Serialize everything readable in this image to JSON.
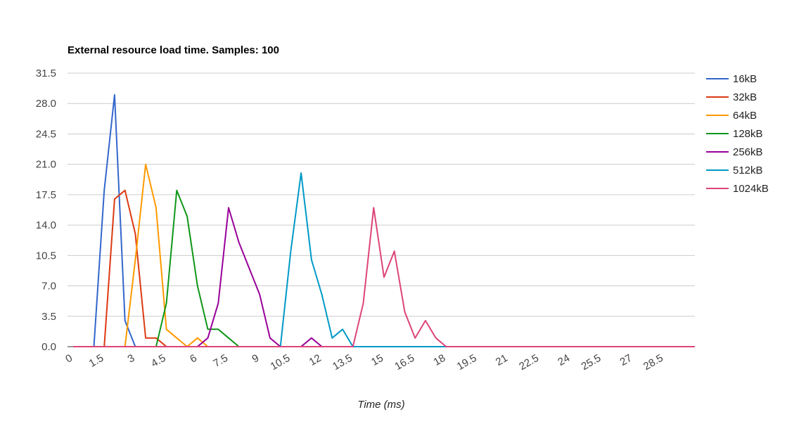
{
  "chart_data": {
    "type": "line",
    "title": "External resource load time. Samples: 100",
    "xlabel": "Time (ms)",
    "ylabel": "",
    "xlim": [
      0,
      30
    ],
    "ylim": [
      0,
      31.5
    ],
    "y_ticks": [
      "0.0",
      "3.5",
      "7.0",
      "10.5",
      "14.0",
      "17.5",
      "21.0",
      "24.5",
      "28.0",
      "31.5"
    ],
    "x_ticks": [
      "0",
      "1.5",
      "3",
      "4.5",
      "6",
      "7.5",
      "9",
      "10.5",
      "12",
      "13.5",
      "15",
      "16.5",
      "18",
      "19.5",
      "21",
      "22.5",
      "24",
      "25.5",
      "27",
      "28.5"
    ],
    "grid": true,
    "legend_position": "right",
    "series": [
      {
        "name": "16kB",
        "color": "#3366cc",
        "x": [
          0,
          1,
          1.5,
          2,
          2.5,
          3,
          30
        ],
        "y": [
          0,
          0,
          18,
          29,
          3,
          0,
          0
        ]
      },
      {
        "name": "32kB",
        "color": "#dc3912",
        "x": [
          0,
          1.5,
          2,
          2.5,
          3,
          3.5,
          4,
          4.5,
          30
        ],
        "y": [
          0,
          0,
          17,
          18,
          13,
          1,
          1,
          0,
          0
        ]
      },
      {
        "name": "64kB",
        "color": "#ff9900",
        "x": [
          0,
          2.5,
          3,
          3.5,
          4,
          4.5,
          5,
          5.5,
          6,
          6.5,
          30
        ],
        "y": [
          0,
          0,
          10,
          21,
          16,
          2,
          1,
          0,
          1,
          0,
          0
        ]
      },
      {
        "name": "128kB",
        "color": "#109618",
        "x": [
          0,
          4,
          4.5,
          5,
          5.5,
          6,
          6.5,
          7,
          7.5,
          8,
          30
        ],
        "y": [
          0,
          0,
          5,
          18,
          15,
          7,
          2,
          2,
          1,
          0,
          0
        ]
      },
      {
        "name": "256kB",
        "color": "#990099",
        "x": [
          0,
          6,
          6.5,
          7,
          7.5,
          8,
          8.5,
          9,
          9.5,
          10,
          10.5,
          11,
          11.5,
          12,
          30
        ],
        "y": [
          0,
          0,
          1,
          5,
          16,
          12,
          9,
          6,
          1,
          0,
          0,
          0,
          1,
          0,
          0
        ]
      },
      {
        "name": "512kB",
        "color": "#0099c6",
        "x": [
          0,
          10,
          10.5,
          11,
          11.5,
          12,
          12.5,
          13,
          13.5,
          30
        ],
        "y": [
          0,
          0,
          11,
          20,
          10,
          6,
          1,
          2,
          0,
          0
        ]
      },
      {
        "name": "1024kB",
        "color": "#dd4477",
        "x": [
          0,
          13.5,
          14,
          14.5,
          15,
          15.5,
          16,
          16.5,
          17,
          17.5,
          18,
          30
        ],
        "y": [
          0,
          0,
          5,
          16,
          8,
          11,
          4,
          1,
          3,
          1,
          0,
          0
        ]
      }
    ]
  }
}
